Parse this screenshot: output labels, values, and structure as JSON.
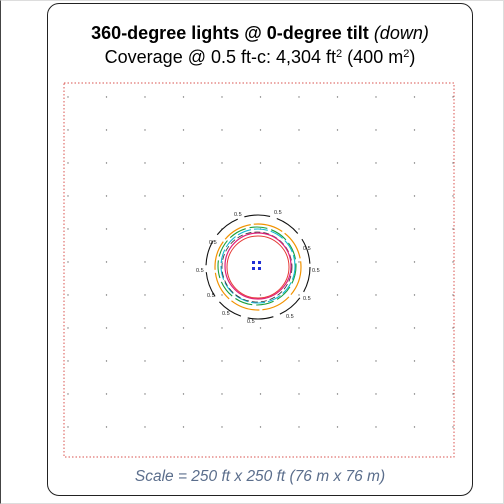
{
  "title": {
    "bold": "360-degree lights @ 0-degree tilt",
    "italic": "(down)"
  },
  "coverage": {
    "prefix": "Coverage @ 0.5 ft-c: 4,304 ft",
    "unit1_sup": "2",
    "middle": " (400 m",
    "unit2_sup": "2",
    "suffix": ")"
  },
  "scale_caption": "Scale = 250 ft x 250 ft (76 m x 76 m)",
  "contour_label": "0.5",
  "colors": {
    "boundary": "#d9534f",
    "grid_dot": "#777777",
    "outer_contour": "#111111",
    "orange_contour": "#f29300",
    "green_contour": "#1b9e3a",
    "cyan_contour": "#17b8d6",
    "magenta_contour": "#e0217d",
    "red_contour": "#e53935",
    "light_marker": "#1f2fd6"
  }
}
